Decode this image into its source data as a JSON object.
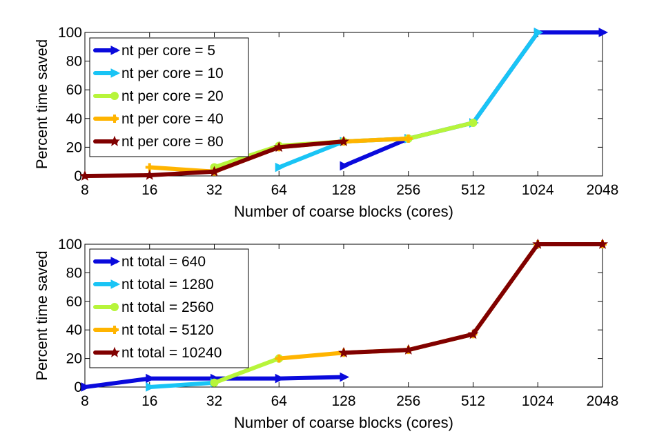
{
  "chart_data": [
    {
      "type": "line",
      "xlabel": "Number of coarse blocks (cores)",
      "ylabel": "Percent time saved",
      "x_scale": "log2",
      "xticks": [
        8,
        16,
        32,
        64,
        128,
        256,
        512,
        1024,
        2048
      ],
      "xtick_labels": [
        "8",
        "16",
        "32",
        "64",
        "128",
        "256",
        "512",
        "1024",
        "2048"
      ],
      "xlim": [
        8,
        2048
      ],
      "yticks": [
        0,
        20,
        40,
        60,
        80,
        100
      ],
      "ytick_labels": [
        "0",
        "20",
        "40",
        "60",
        "80",
        "100"
      ],
      "ylim": [
        0,
        100
      ],
      "legend_position": "top-left",
      "series": [
        {
          "name": "nt per core = 5",
          "color": "#0a0adc",
          "marker": "triangle-right",
          "x": [
            128,
            256,
            512,
            1024,
            2048
          ],
          "y": [
            7,
            26,
            37,
            100,
            100
          ]
        },
        {
          "name": "nt per core = 10",
          "color": "#19c4f5",
          "marker": "triangle-right",
          "x": [
            64,
            128,
            256,
            512,
            1024
          ],
          "y": [
            6,
            24,
            26,
            37,
            100
          ]
        },
        {
          "name": "nt per core = 20",
          "color": "#b7f53a",
          "marker": "circle",
          "x": [
            32,
            64,
            128,
            256,
            512
          ],
          "y": [
            6,
            21,
            24,
            26,
            37
          ]
        },
        {
          "name": "nt per core = 40",
          "color": "#ffb400",
          "marker": "plus",
          "x": [
            16,
            32,
            64,
            128,
            256
          ],
          "y": [
            6,
            3,
            20,
            24,
            26
          ]
        },
        {
          "name": "nt per core = 80",
          "color": "#800000",
          "marker": "star",
          "x": [
            8,
            16,
            32,
            64,
            128
          ],
          "y": [
            0,
            0.5,
            3,
            20,
            24
          ]
        }
      ]
    },
    {
      "type": "line",
      "xlabel": "Number of coarse blocks (cores)",
      "ylabel": "Percent time saved",
      "x_scale": "log2",
      "xticks": [
        8,
        16,
        32,
        64,
        128,
        256,
        512,
        1024,
        2048
      ],
      "xtick_labels": [
        "8",
        "16",
        "32",
        "64",
        "128",
        "256",
        "512",
        "1024",
        "2048"
      ],
      "xlim": [
        8,
        2048
      ],
      "yticks": [
        0,
        20,
        40,
        60,
        80,
        100
      ],
      "ytick_labels": [
        "0",
        "20",
        "40",
        "60",
        "80",
        "100"
      ],
      "ylim": [
        0,
        100
      ],
      "legend_position": "top-left",
      "series": [
        {
          "name": "nt total = 640",
          "color": "#0a0adc",
          "marker": "triangle-right",
          "x": [
            8,
            16,
            32,
            64,
            128
          ],
          "y": [
            0,
            6,
            6,
            6,
            7
          ]
        },
        {
          "name": "nt total = 1280",
          "color": "#19c4f5",
          "marker": "triangle-right",
          "x": [
            16,
            32
          ],
          "y": [
            0,
            3
          ]
        },
        {
          "name": "nt total = 2560",
          "color": "#b7f53a",
          "marker": "circle",
          "x": [
            32,
            64
          ],
          "y": [
            3,
            20
          ]
        },
        {
          "name": "nt total = 5120",
          "color": "#ffb400",
          "marker": "plus",
          "x": [
            64,
            128,
            256,
            512,
            1024,
            2048
          ],
          "y": [
            20,
            24,
            26,
            37,
            100,
            100
          ]
        },
        {
          "name": "nt total = 10240",
          "color": "#800000",
          "marker": "star",
          "x": [
            128,
            256,
            512,
            1024,
            2048
          ],
          "y": [
            24,
            26,
            37,
            100,
            100
          ]
        }
      ]
    }
  ]
}
